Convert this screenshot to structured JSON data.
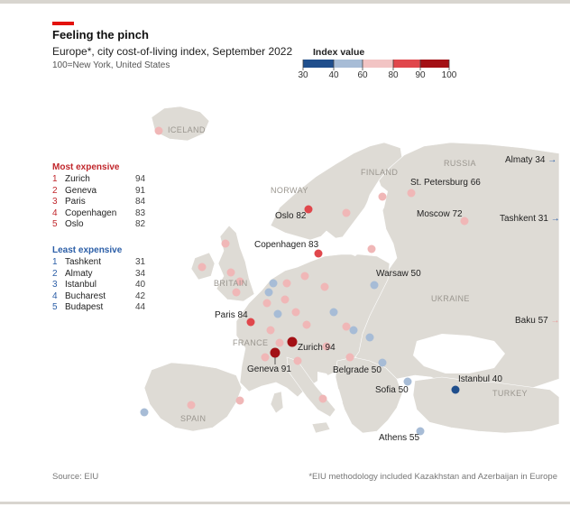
{
  "header": {
    "title": "Feeling the pinch",
    "subtitle": "Europe*, city cost-of-living index, September 2022",
    "note": "100=New York, United States"
  },
  "legend": {
    "title": "Index value",
    "ticks": [
      "30",
      "40",
      "60",
      "80",
      "90",
      "100"
    ],
    "colors": [
      "#1f4e8c",
      "#a7bcd6",
      "#f2c4c4",
      "#e0474c",
      "#a31015"
    ]
  },
  "most_expensive": {
    "heading": "Most expensive",
    "color": "#c0262b",
    "items": [
      {
        "rank": "1",
        "city": "Zurich",
        "value": "94"
      },
      {
        "rank": "2",
        "city": "Geneva",
        "value": "91"
      },
      {
        "rank": "3",
        "city": "Paris",
        "value": "84"
      },
      {
        "rank": "4",
        "city": "Copenhagen",
        "value": "83"
      },
      {
        "rank": "5",
        "city": "Oslo",
        "value": "82"
      }
    ]
  },
  "least_expensive": {
    "heading": "Least expensive",
    "color": "#2b5ea7",
    "items": [
      {
        "rank": "1",
        "city": "Tashkent",
        "value": "31"
      },
      {
        "rank": "2",
        "city": "Almaty",
        "value": "34"
      },
      {
        "rank": "3",
        "city": "Istanbul",
        "value": "40"
      },
      {
        "rank": "4",
        "city": "Bucharest",
        "value": "42"
      },
      {
        "rank": "5",
        "city": "Budapest",
        "value": "44"
      }
    ]
  },
  "country_labels": {
    "iceland": "ICELAND",
    "norway": "NORWAY",
    "finland": "FINLAND",
    "russia": "RUSSIA",
    "britain": "BRITAIN",
    "france": "FRANCE",
    "ukraine": "UKRAINE",
    "spain": "SPAIN",
    "turkey": "TURKEY"
  },
  "city_labels": {
    "st_petersburg": "St. Petersburg 66",
    "oslo": "Oslo 82",
    "moscow": "Moscow 72",
    "copenhagen": "Copenhagen 83",
    "warsaw": "Warsaw 50",
    "paris": "Paris 84",
    "zurich": "Zurich 94",
    "geneva": "Geneva 91",
    "belgrade": "Belgrade 50",
    "sofia": "Sofia 50",
    "istanbul": "Istanbul 40",
    "athens": "Athens 55",
    "almaty": "Almaty 34",
    "tashkent": "Tashkent 31",
    "baku": "Baku 57"
  },
  "footer": {
    "source": "Source: EIU",
    "footnote": "*EIU methodology included Kazakhstan and Azerbaijan in Europe"
  }
}
